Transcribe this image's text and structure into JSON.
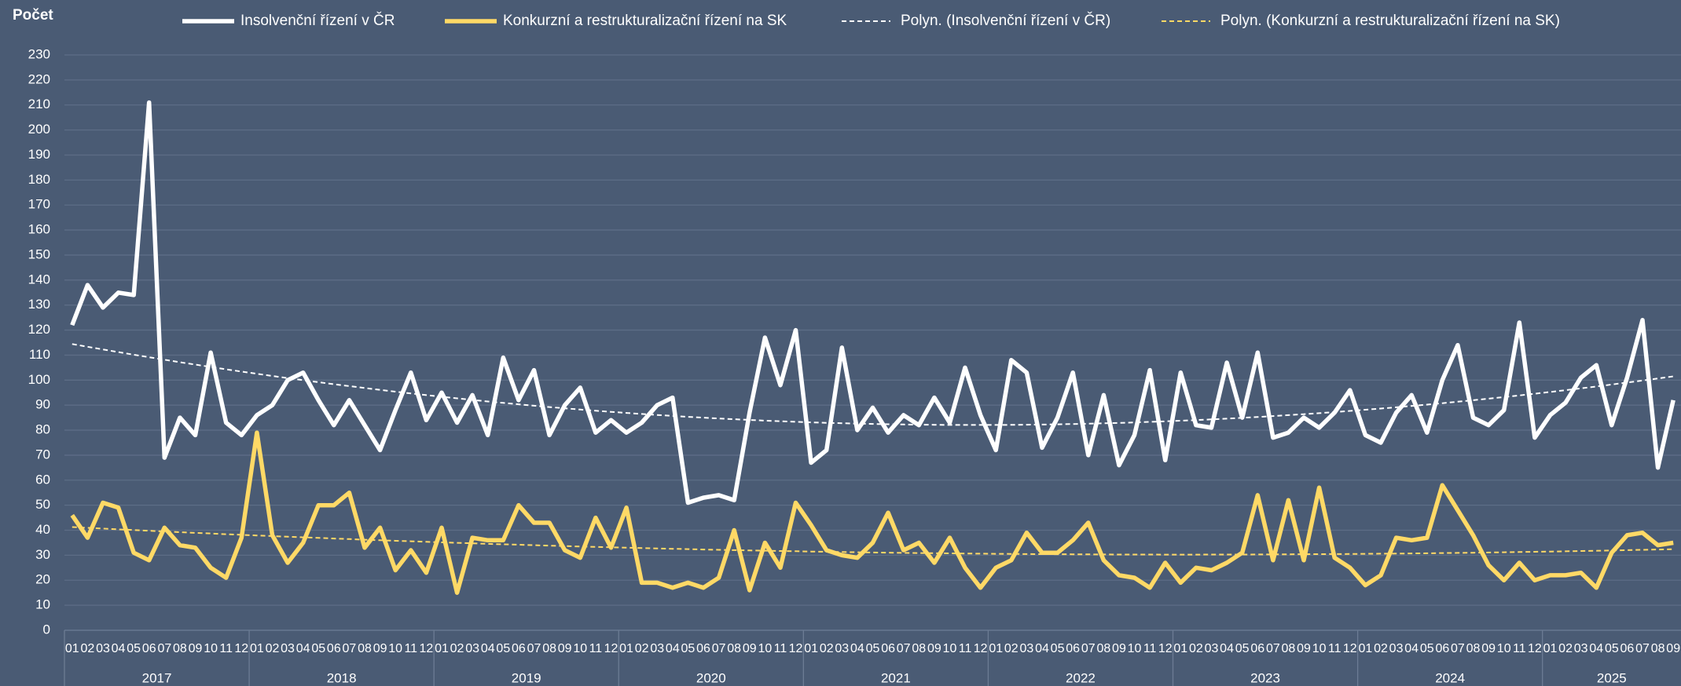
{
  "chart_data": {
    "type": "line",
    "y_title": "Počet",
    "ylim": [
      0,
      230
    ],
    "yticks": [
      0,
      10,
      20,
      30,
      40,
      50,
      60,
      70,
      80,
      90,
      100,
      110,
      120,
      130,
      140,
      150,
      160,
      170,
      180,
      190,
      200,
      210,
      220,
      230
    ],
    "grid": true,
    "years": [
      "2017",
      "2018",
      "2019",
      "2020",
      "2021",
      "2022",
      "2023",
      "2024",
      "2025"
    ],
    "categories": [
      "01",
      "02",
      "03",
      "04",
      "05",
      "06",
      "07",
      "08",
      "09",
      "10",
      "11",
      "12",
      "01",
      "02",
      "03",
      "04",
      "05",
      "06",
      "07",
      "08",
      "09",
      "10",
      "11",
      "12",
      "01",
      "02",
      "03",
      "04",
      "05",
      "06",
      "07",
      "08",
      "09",
      "10",
      "11",
      "12",
      "01",
      "02",
      "03",
      "04",
      "05",
      "06",
      "07",
      "08",
      "09",
      "10",
      "11",
      "12",
      "01",
      "02",
      "03",
      "04",
      "05",
      "06",
      "07",
      "08",
      "09",
      "10",
      "11",
      "12",
      "01",
      "02",
      "03",
      "04",
      "05",
      "06",
      "07",
      "08",
      "09",
      "10",
      "11",
      "12",
      "01",
      "02",
      "03",
      "04",
      "05",
      "06",
      "07",
      "08",
      "09",
      "10",
      "11",
      "12",
      "01",
      "02",
      "03",
      "04",
      "05",
      "06",
      "07",
      "08",
      "09",
      "10",
      "11",
      "12",
      "01",
      "02",
      "03",
      "04",
      "05",
      "06",
      "07",
      "08",
      "09"
    ],
    "series": [
      {
        "name": "Insolvenční řízení v ČR",
        "color": "#ffffff",
        "trend_name": "Polyn. (Insolvenční řízení v ČR)",
        "values": [
          122,
          138,
          129,
          135,
          134,
          211,
          69,
          85,
          78,
          111,
          83,
          78,
          86,
          90,
          100,
          103,
          92,
          82,
          92,
          82,
          72,
          88,
          103,
          84,
          95,
          83,
          94,
          78,
          109,
          92,
          104,
          78,
          90,
          97,
          79,
          84,
          79,
          83,
          90,
          93,
          51,
          53,
          54,
          52,
          87,
          117,
          98,
          120,
          67,
          72,
          113,
          80,
          89,
          79,
          86,
          82,
          93,
          83,
          105,
          86,
          72,
          108,
          103,
          73,
          85,
          103,
          70,
          94,
          66,
          78,
          104,
          68,
          103,
          82,
          81,
          107,
          85,
          111,
          77,
          79,
          85,
          81,
          87,
          96,
          78,
          75,
          87,
          94,
          79,
          100,
          114,
          85,
          82,
          88,
          123,
          77,
          86,
          91,
          101,
          106,
          82,
          101,
          124,
          65,
          92
        ]
      },
      {
        "name": "Konkurzní a restrukturalizační řízení na SK",
        "color": "#ffd966",
        "trend_name": "Polyn. (Konkurzní a restrukturalizační řízení na SK)",
        "values": [
          46,
          37,
          51,
          49,
          31,
          28,
          41,
          34,
          33,
          25,
          21,
          37,
          79,
          38,
          27,
          35,
          50,
          50,
          55,
          33,
          41,
          24,
          32,
          23,
          41,
          15,
          37,
          36,
          36,
          50,
          43,
          43,
          32,
          29,
          45,
          33,
          49,
          19,
          19,
          17,
          19,
          17,
          21,
          40,
          16,
          35,
          25,
          51,
          42,
          32,
          30,
          29,
          35,
          47,
          32,
          35,
          27,
          37,
          25,
          17,
          25,
          28,
          39,
          31,
          31,
          36,
          43,
          28,
          22,
          21,
          17,
          27,
          19,
          25,
          24,
          27,
          31,
          54,
          28,
          52,
          28,
          57,
          29,
          25,
          18,
          22,
          37,
          36,
          37,
          58,
          48,
          38,
          26,
          20,
          27,
          20,
          22,
          22,
          23,
          17,
          31,
          38,
          39,
          34,
          35
        ]
      }
    ]
  }
}
